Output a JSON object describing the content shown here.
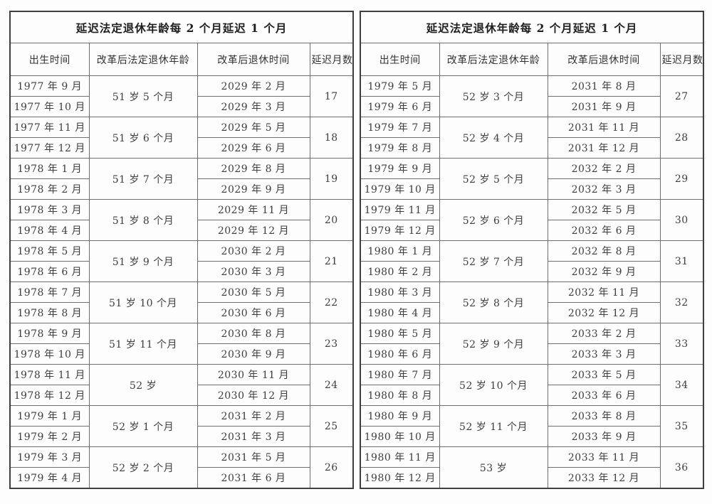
{
  "page": {
    "background": "#fdfdfd",
    "text_color": "#3d3d3d",
    "border_color": "#6e6e6e",
    "outer_border_color": "#3f3f3f"
  },
  "tables": [
    {
      "title": "延迟法定退休年龄每 2 个月延迟 1 个月",
      "headers": [
        "出生时间",
        "改革后法定退休年龄",
        "改革后退休时间",
        "延迟月数"
      ],
      "groups": [
        {
          "births": [
            "1977 年 9 月",
            "1977 年 10 月"
          ],
          "age": "51 岁 5 个月",
          "retire": [
            "2029 年 2 月",
            "2029 年 3 月"
          ],
          "delay": "17"
        },
        {
          "births": [
            "1977 年 11 月",
            "1977 年 12 月"
          ],
          "age": "51 岁 6 个月",
          "retire": [
            "2029 年 5 月",
            "2029 年 6 月"
          ],
          "delay": "18"
        },
        {
          "births": [
            "1978 年 1 月",
            "1978 年 2 月"
          ],
          "age": "51 岁 7 个月",
          "retire": [
            "2029 年 8 月",
            "2029 年 9 月"
          ],
          "delay": "19"
        },
        {
          "births": [
            "1978 年 3 月",
            "1978 年 4 月"
          ],
          "age": "51 岁 8 个月",
          "retire": [
            "2029 年 11 月",
            "2029 年 12 月"
          ],
          "delay": "20"
        },
        {
          "births": [
            "1978 年 5 月",
            "1978 年 6 月"
          ],
          "age": "51 岁 9 个月",
          "retire": [
            "2030 年 2 月",
            "2030 年 3 月"
          ],
          "delay": "21"
        },
        {
          "births": [
            "1978 年 7 月",
            "1978 年 8 月"
          ],
          "age": "51 岁 10 个月",
          "retire": [
            "2030 年 5 月",
            "2030 年 6 月"
          ],
          "delay": "22"
        },
        {
          "births": [
            "1978 年 9 月",
            "1978 年 10 月"
          ],
          "age": "51 岁 11 个月",
          "retire": [
            "2030 年 8 月",
            "2030 年 9 月"
          ],
          "delay": "23"
        },
        {
          "births": [
            "1978 年 11 月",
            "1978 年 12 月"
          ],
          "age": "52 岁",
          "retire": [
            "2030 年 11 月",
            "2030 年 12 月"
          ],
          "delay": "24"
        },
        {
          "births": [
            "1979 年 1 月",
            "1979 年 2 月"
          ],
          "age": "52 岁 1 个月",
          "retire": [
            "2031 年 2 月",
            "2031 年 3 月"
          ],
          "delay": "25"
        },
        {
          "births": [
            "1979 年 3 月",
            "1979 年 4 月"
          ],
          "age": "52 岁 2 个月",
          "retire": [
            "2031 年 5 月",
            "2031 年 6 月"
          ],
          "delay": "26"
        }
      ]
    },
    {
      "title": "延迟法定退休年龄每 2 个月延迟 1 个月",
      "headers": [
        "出生时间",
        "改革后法定退休年龄",
        "改革后退休时间",
        "延迟月数"
      ],
      "groups": [
        {
          "births": [
            "1979 年 5 月",
            "1979 年 6 月"
          ],
          "age": "52 岁 3 个月",
          "retire": [
            "2031 年 8 月",
            "2031 年 9 月"
          ],
          "delay": "27"
        },
        {
          "births": [
            "1979 年 7 月",
            "1979 年 8 月"
          ],
          "age": "52 岁 4 个月",
          "retire": [
            "2031 年 11 月",
            "2031 年 12 月"
          ],
          "delay": "28"
        },
        {
          "births": [
            "1979 年 9 月",
            "1979 年 10 月"
          ],
          "age": "52 岁 5 个月",
          "retire": [
            "2032 年 2 月",
            "2032 年 3 月"
          ],
          "delay": "29"
        },
        {
          "births": [
            "1979 年 11 月",
            "1979 年 12 月"
          ],
          "age": "52 岁 6 个月",
          "retire": [
            "2032 年 5 月",
            "2032 年 6 月"
          ],
          "delay": "30"
        },
        {
          "births": [
            "1980 年 1 月",
            "1980 年 2 月"
          ],
          "age": "52 岁 7 个月",
          "retire": [
            "2032 年 8 月",
            "2032 年 9 月"
          ],
          "delay": "31"
        },
        {
          "births": [
            "1980 年 3 月",
            "1980 年 4 月"
          ],
          "age": "52 岁 8 个月",
          "retire": [
            "2032 年 11 月",
            "2032 年 12 月"
          ],
          "delay": "32"
        },
        {
          "births": [
            "1980 年 5 月",
            "1980 年 6 月"
          ],
          "age": "52 岁 9 个月",
          "retire": [
            "2033 年 2 月",
            "2033 年 3 月"
          ],
          "delay": "33"
        },
        {
          "births": [
            "1980 年 7 月",
            "1980 年 8 月"
          ],
          "age": "52 岁 10 个月",
          "retire": [
            "2033 年 5 月",
            "2033 年 6 月"
          ],
          "delay": "34"
        },
        {
          "births": [
            "1980 年 9 月",
            "1980 年 10 月"
          ],
          "age": "52 岁 11 个月",
          "retire": [
            "2033 年 8 月",
            "2033 年 9 月"
          ],
          "delay": "35"
        },
        {
          "births": [
            "1980 年 11 月",
            "1980 年 12 月"
          ],
          "age": "53 岁",
          "retire": [
            "2033 年 11 月",
            "2033 年 12 月"
          ],
          "delay": "36"
        }
      ]
    }
  ]
}
